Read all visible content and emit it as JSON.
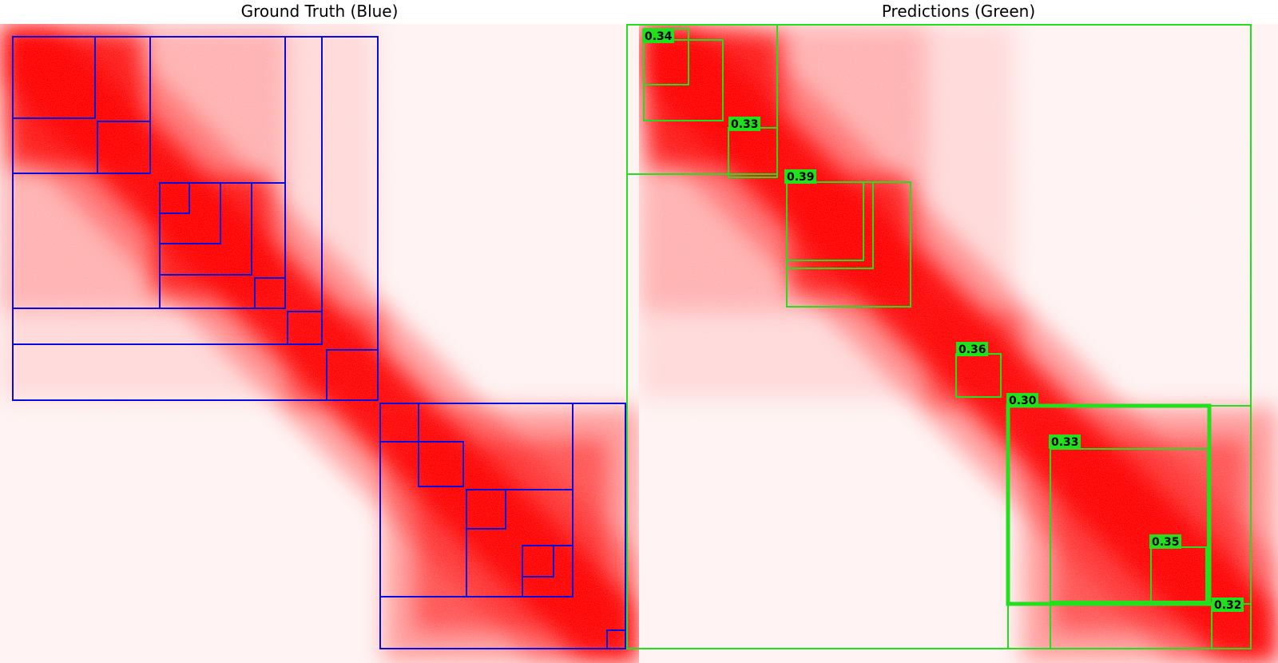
{
  "panels": {
    "left": {
      "title": "Ground Truth (Blue)",
      "box_color": "#0a0ae0"
    },
    "right": {
      "title": "Predictions (Green)",
      "box_color": "#22e01e"
    }
  },
  "heatmap": {
    "color": "#ff0000"
  },
  "predictions": {
    "scores": [
      "0.34",
      "0.33",
      "0.39",
      "0.36",
      "0.30",
      "0.33",
      "0.35",
      "0.32"
    ]
  }
}
